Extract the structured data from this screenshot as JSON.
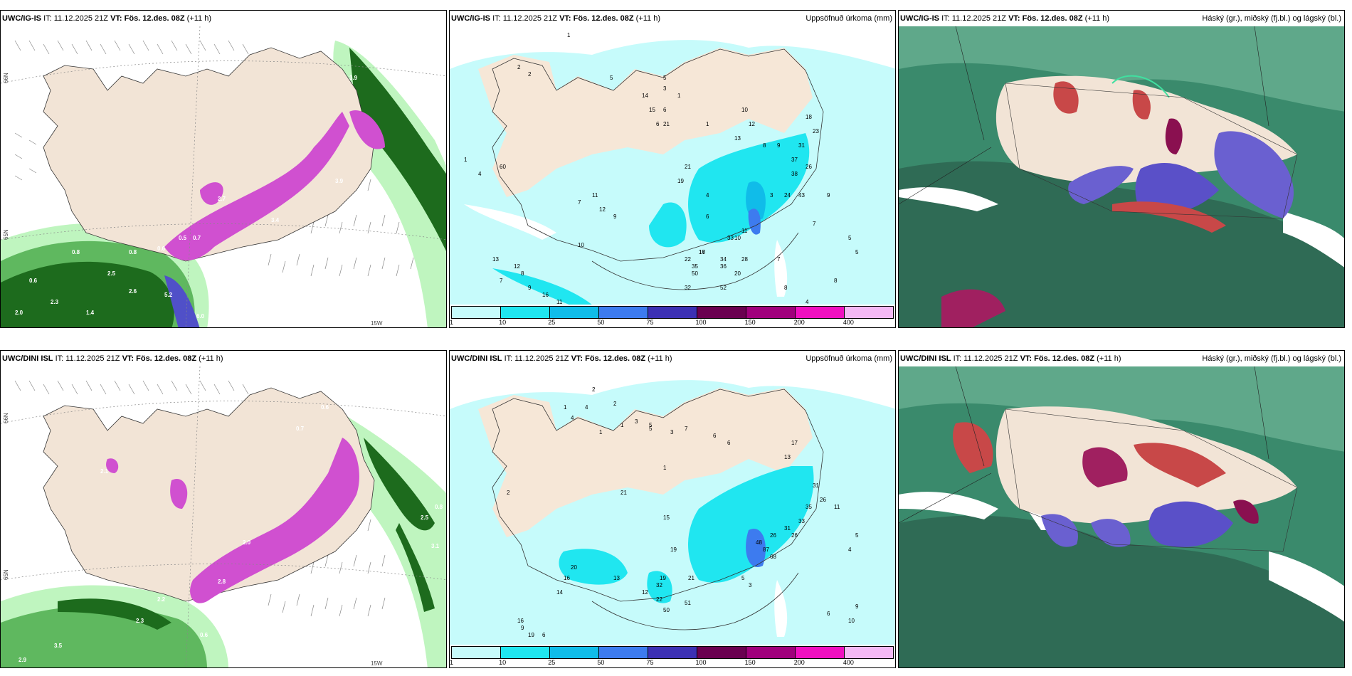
{
  "rows": [
    {
      "model": "UWC/IG-IS",
      "it_label": "IT:",
      "it_value": "11.12.2025 21Z",
      "vt_label": "VT:",
      "vt_value": "Fös. 12.des. 08Z",
      "lead": "(+11 h)",
      "precip_values": [
        "1",
        "2",
        "2",
        "5",
        "5",
        "3",
        "1",
        "4",
        "6",
        "6",
        "1",
        "1",
        "10",
        "12",
        "13",
        "8",
        "9",
        "18",
        "23",
        "31",
        "37",
        "26",
        "38",
        "43",
        "24",
        "7",
        "9",
        "5",
        "10",
        "5",
        "4",
        "21",
        "19",
        "60",
        "14",
        "15",
        "21",
        "11",
        "7",
        "12",
        "9",
        "10",
        "6",
        "3",
        "11",
        "33",
        "34",
        "28",
        "20",
        "17",
        "16",
        "22",
        "13",
        "12",
        "8",
        "7",
        "9",
        "16",
        "11",
        "50",
        "52",
        "32",
        "35",
        "36",
        "7",
        "8",
        "4",
        "8"
      ],
      "wind_values": [
        "3.9",
        "0.5",
        "0.7",
        "0.6",
        "0.8",
        "2.5",
        "2.6",
        "5.2",
        "6.0",
        "2.0",
        "2.3",
        "1.4",
        "0.6",
        "3.9",
        "2.7",
        "3.4",
        "1.7",
        "0.8"
      ]
    },
    {
      "model": "UWC/DINI ISL",
      "it_label": "IT:",
      "it_value": "11.12.2025 21Z",
      "vt_label": "VT:",
      "vt_value": "Fös. 12.des. 08Z",
      "lead": "(+11 h)",
      "precip_values": [
        "2",
        "4",
        "1",
        "2",
        "1",
        "1",
        "3",
        "5",
        "7",
        "6",
        "6",
        "17",
        "13",
        "31",
        "26",
        "35",
        "33",
        "31",
        "26",
        "2",
        "4",
        "5",
        "3",
        "1",
        "21",
        "15",
        "19",
        "13",
        "20",
        "16",
        "14",
        "12",
        "22",
        "50",
        "51",
        "32",
        "19",
        "21",
        "48",
        "87",
        "68",
        "26",
        "5",
        "3",
        "6",
        "10",
        "9",
        "4",
        "5",
        "11",
        "16",
        "9",
        "19",
        "6"
      ],
      "wind_values": [
        "0.6",
        "0.7",
        "0.9",
        "2.5",
        "3.1",
        "0.8",
        "2.1",
        "2.0",
        "2.8",
        "0.7",
        "0.8",
        "2.3",
        "3.5",
        "2.9",
        "2.2",
        "1.7",
        "0.8",
        "0.6"
      ]
    }
  ],
  "precip_title": "Uppsöfnuð úrkoma (mm)",
  "cloud_title": "Háský (gr.), miðský (fj.bl.) og lágský (bl.)",
  "legend": {
    "ticks": [
      "1",
      "10",
      "25",
      "50",
      "75",
      "100",
      "150",
      "200",
      "400"
    ],
    "colors": [
      "#c6fbfb",
      "#20e6f0",
      "#10bce9",
      "#3d7bef",
      "#3c30b4",
      "#6a0050",
      "#a0007c",
      "#f010c0",
      "#f4b8f4"
    ]
  },
  "grid_labels": [
    "66N",
    "65N",
    "15W"
  ]
}
